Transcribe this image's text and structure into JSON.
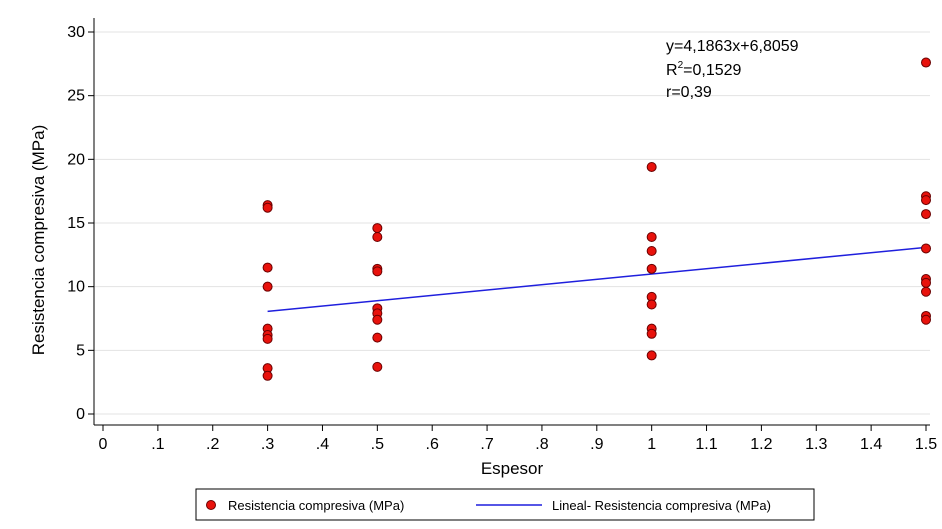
{
  "chart_data": {
    "type": "scatter",
    "title": "",
    "xlabel": "Espesor",
    "ylabel": "Resistencia compresiva (MPa)",
    "xlim": [
      -0.05,
      1.52
    ],
    "ylim": [
      -1,
      31
    ],
    "xticks": [
      {
        "value": 0,
        "label": "0"
      },
      {
        "value": 0.1,
        "label": ".1"
      },
      {
        "value": 0.2,
        "label": ".2"
      },
      {
        "value": 0.3,
        "label": ".3"
      },
      {
        "value": 0.4,
        "label": ".4"
      },
      {
        "value": 0.5,
        "label": ".5"
      },
      {
        "value": 0.6,
        "label": ".6"
      },
      {
        "value": 0.7,
        "label": ".7"
      },
      {
        "value": 0.8,
        "label": ".8"
      },
      {
        "value": 0.9,
        "label": ".9"
      },
      {
        "value": 1.0,
        "label": "1"
      },
      {
        "value": 1.1,
        "label": "1.1"
      },
      {
        "value": 1.2,
        "label": "1.2"
      },
      {
        "value": 1.3,
        "label": "1.3"
      },
      {
        "value": 1.4,
        "label": "1.4"
      },
      {
        "value": 1.5,
        "label": "1.5"
      }
    ],
    "yticks": [
      {
        "value": 0,
        "label": "0"
      },
      {
        "value": 5,
        "label": "5"
      },
      {
        "value": 10,
        "label": "10"
      },
      {
        "value": 15,
        "label": "15"
      },
      {
        "value": 20,
        "label": "20"
      },
      {
        "value": 25,
        "label": "25"
      },
      {
        "value": 30,
        "label": "30"
      }
    ],
    "grid": true,
    "series": [
      {
        "name": "Resistencia compresiva (MPa)",
        "kind": "scatter",
        "color": "#e8120c",
        "points": [
          [
            0.3,
            16.4
          ],
          [
            0.3,
            16.2
          ],
          [
            0.3,
            11.5
          ],
          [
            0.3,
            10.0
          ],
          [
            0.3,
            6.7
          ],
          [
            0.3,
            6.2
          ],
          [
            0.3,
            5.9
          ],
          [
            0.3,
            3.6
          ],
          [
            0.3,
            3.0
          ],
          [
            0.5,
            14.6
          ],
          [
            0.5,
            13.9
          ],
          [
            0.5,
            11.4
          ],
          [
            0.5,
            11.2
          ],
          [
            0.5,
            8.3
          ],
          [
            0.5,
            7.9
          ],
          [
            0.5,
            7.4
          ],
          [
            0.5,
            6.0
          ],
          [
            0.5,
            3.7
          ],
          [
            1.0,
            19.4
          ],
          [
            1.0,
            13.9
          ],
          [
            1.0,
            12.8
          ],
          [
            1.0,
            11.4
          ],
          [
            1.0,
            9.2
          ],
          [
            1.0,
            8.6
          ],
          [
            1.0,
            6.7
          ],
          [
            1.0,
            6.3
          ],
          [
            1.0,
            4.6
          ],
          [
            1.5,
            27.6
          ],
          [
            1.5,
            17.1
          ],
          [
            1.5,
            16.8
          ],
          [
            1.5,
            15.7
          ],
          [
            1.5,
            13.0
          ],
          [
            1.5,
            10.6
          ],
          [
            1.5,
            10.3
          ],
          [
            1.5,
            9.6
          ],
          [
            1.5,
            7.7
          ],
          [
            1.5,
            7.4
          ]
        ]
      },
      {
        "name": "Lineal- Resistencia compresiva (MPa)",
        "kind": "line",
        "color": "#1f1fdd",
        "slope": 4.1863,
        "intercept": 6.8059,
        "x_range": [
          0.3,
          1.5
        ]
      }
    ],
    "annotations": [
      "y=4,1863x+6,8059",
      "R",
      "2",
      "=0,1529",
      "r=0,39"
    ],
    "legend": {
      "position": "bottom"
    }
  }
}
